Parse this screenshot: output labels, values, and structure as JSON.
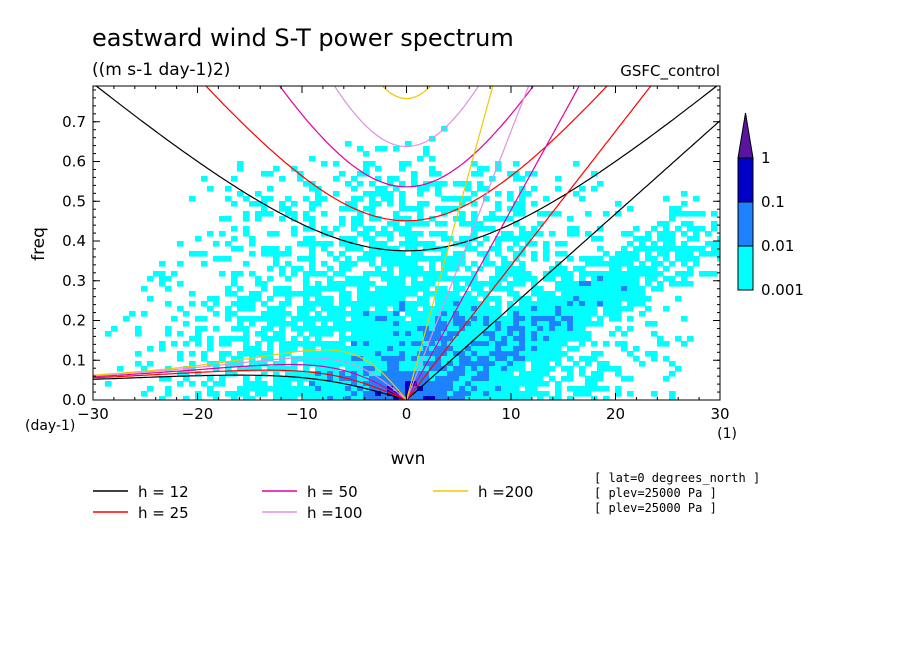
{
  "chart_data": {
    "type": "heatmap",
    "title": "eastward wind S-T power spectrum",
    "subtitle": "((m s-1 day-1)2)",
    "label_right": "GSFC_control",
    "xlabel": "wvn",
    "ylabel": "freq",
    "x_unit": "(1)",
    "y_unit": "(day-1)",
    "xlim": [
      -30,
      30
    ],
    "ylim": [
      0,
      0.79
    ],
    "xticks": [
      "-30",
      "-20",
      "-10",
      "0",
      "10",
      "20",
      "30"
    ],
    "yticks": [
      "0.0",
      "0.1",
      "0.2",
      "0.3",
      "0.4",
      "0.5",
      "0.6",
      "0.7"
    ],
    "colorbar": {
      "levels": [
        "0.001",
        "0.01",
        "0.1",
        "1"
      ],
      "colors": [
        "#00ffff",
        "#1e82ff",
        "#0000c8",
        "#5a14a0"
      ]
    },
    "dispersion_curves": [
      {
        "label": "h = 12",
        "h": 12,
        "color": "#000000"
      },
      {
        "label": "h = 25",
        "h": 25,
        "color": "#ff0000"
      },
      {
        "label": "h = 50",
        "h": 50,
        "color": "#e000a0"
      },
      {
        "label": "h =100",
        "h": 100,
        "color": "#e090e0"
      },
      {
        "label": "h =200",
        "h": 200,
        "color": "#f0c800"
      }
    ],
    "info_lines": [
      "[ lat=0 degrees_north ]",
      "[ plev=25000 Pa ]",
      "[ plev=25000 Pa ]"
    ]
  }
}
